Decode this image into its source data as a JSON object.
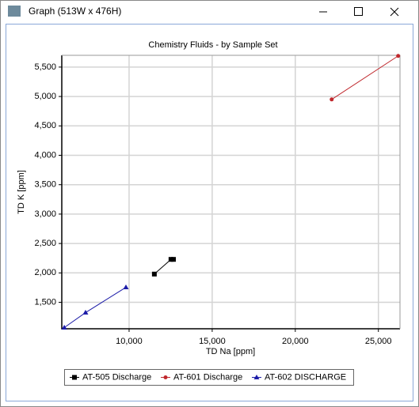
{
  "window": {
    "title": "Graph (513W x 476H)"
  },
  "chart_data": {
    "type": "scatter-line",
    "title": "Chemistry Fluids - by Sample Set",
    "x_label": "TD Na [ppm]",
    "y_label": "TD K [ppm]",
    "xlim": [
      5950,
      26300
    ],
    "ylim": [
      1050,
      5700
    ],
    "xticks": [
      {
        "value": 10000,
        "label": "10,000"
      },
      {
        "value": 15000,
        "label": "15,000"
      },
      {
        "value": 20000,
        "label": "20,000"
      },
      {
        "value": 25000,
        "label": "25,000"
      }
    ],
    "yticks": [
      {
        "value": 1500,
        "label": "1,500"
      },
      {
        "value": 2000,
        "label": "2,000"
      },
      {
        "value": 2500,
        "label": "2,500"
      },
      {
        "value": 3000,
        "label": "3,000"
      },
      {
        "value": 3500,
        "label": "3,500"
      },
      {
        "value": 4000,
        "label": "4,000"
      },
      {
        "value": 4500,
        "label": "4,500"
      },
      {
        "value": 5000,
        "label": "5,000"
      },
      {
        "value": 5500,
        "label": "5,500"
      }
    ],
    "grid": true,
    "legend": "bottom",
    "series": [
      {
        "name": "AT-505 Discharge",
        "color": "#000000",
        "marker": "square",
        "x": [
          11520,
          12520,
          12670
        ],
        "values": [
          1980,
          2230,
          2230
        ]
      },
      {
        "name": "AT-601 Discharge",
        "color": "#c0282d",
        "marker": "circle",
        "x": [
          22190,
          26190
        ],
        "values": [
          4950,
          5690
        ]
      },
      {
        "name": "AT-602 DISCHARGE",
        "color": "#1c1ca8",
        "marker": "triangle",
        "x": [
          6100,
          7380,
          9810
        ],
        "values": [
          1070,
          1325,
          1755
        ]
      }
    ]
  }
}
